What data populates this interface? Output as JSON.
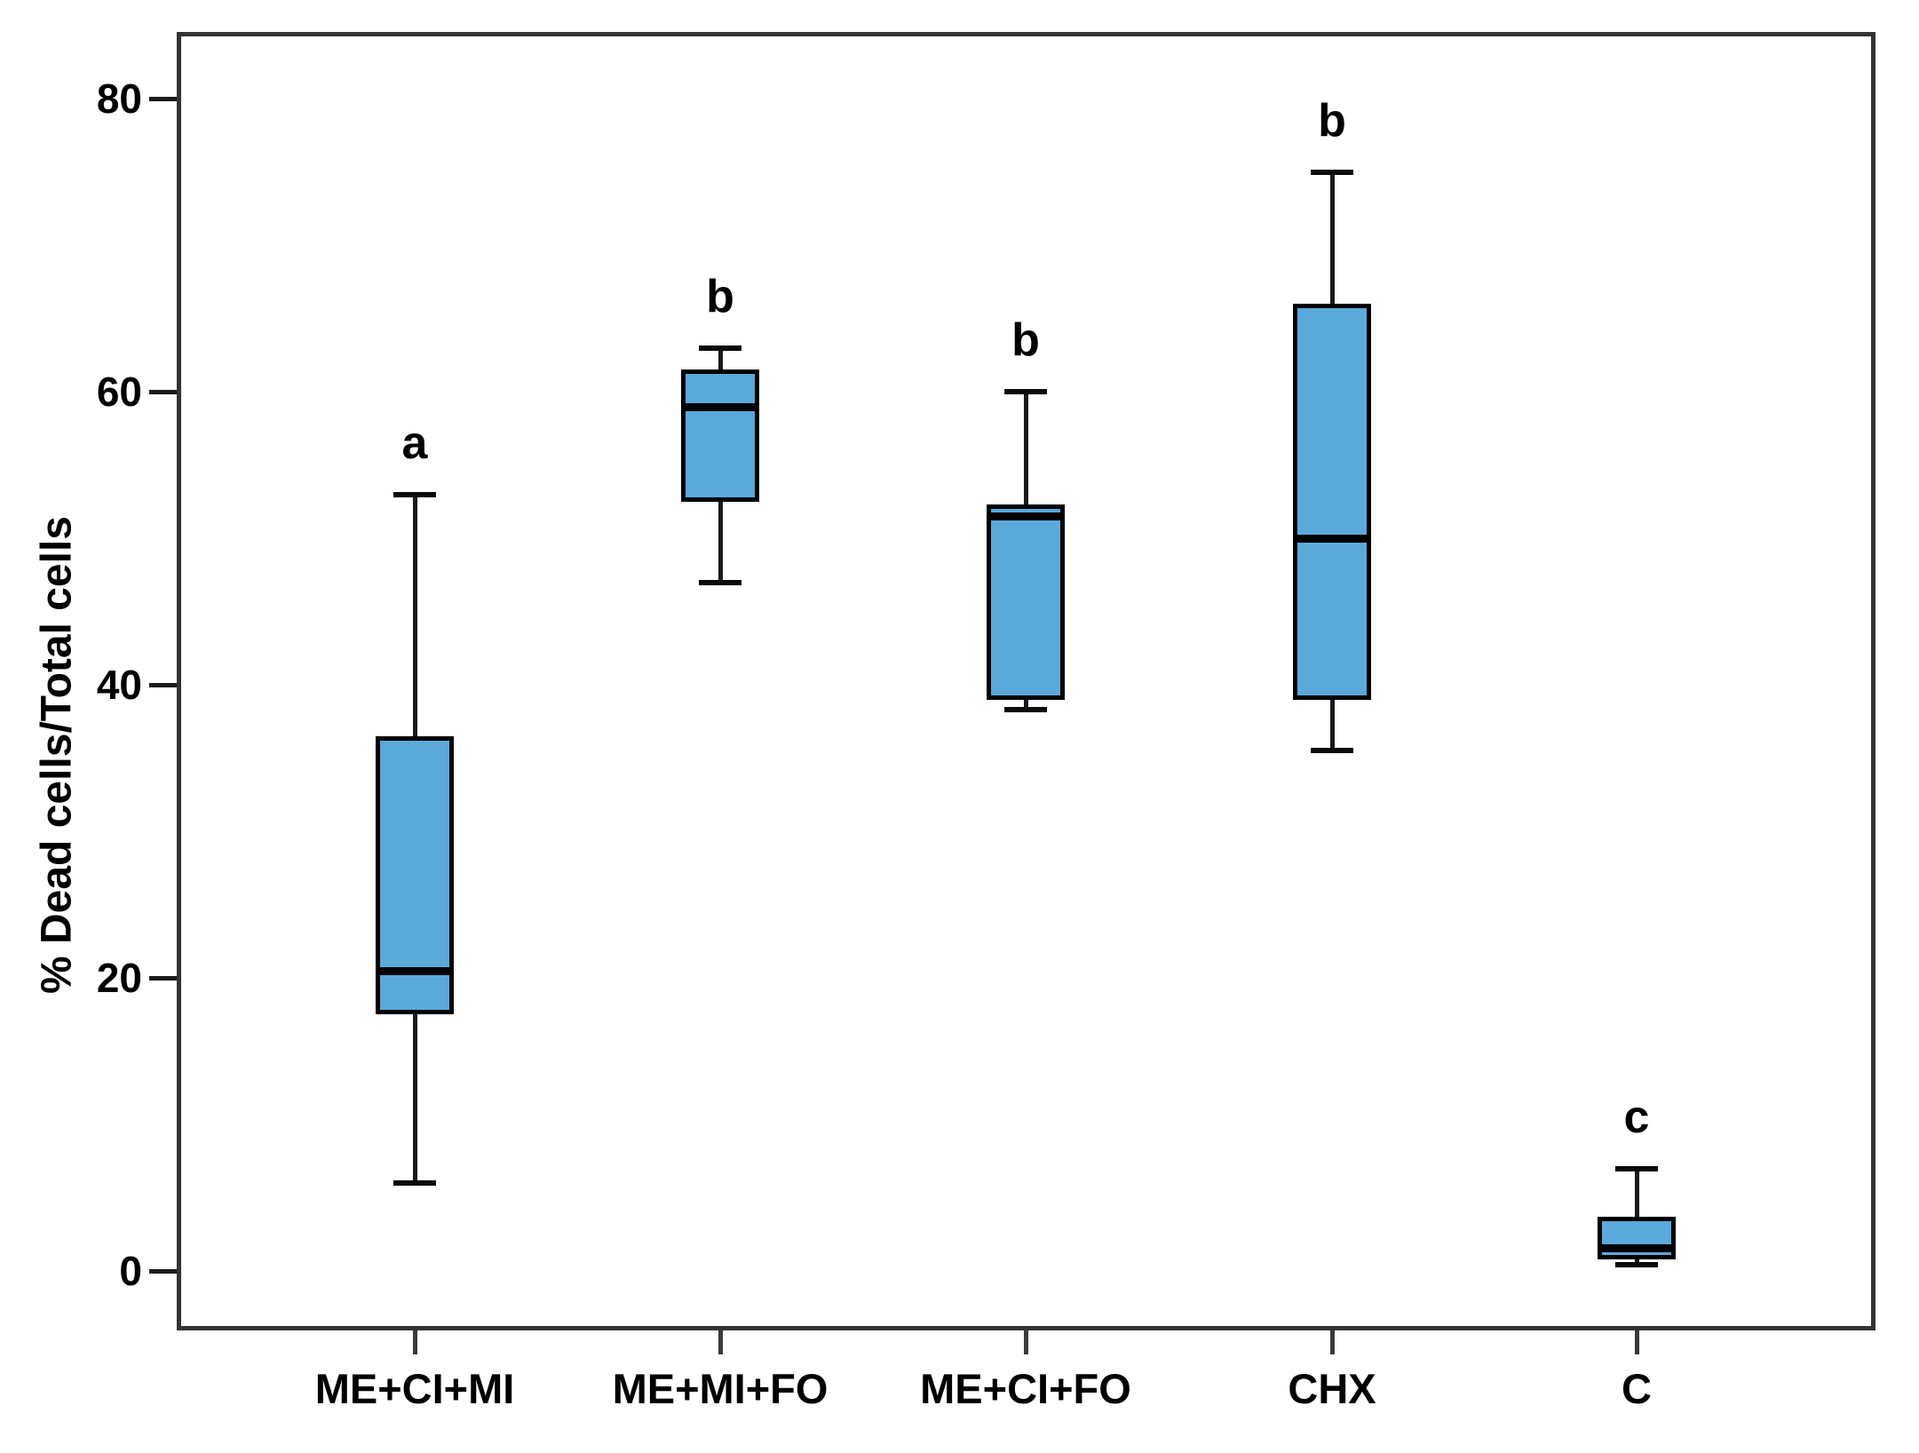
{
  "chart_data": {
    "type": "box",
    "title": "",
    "xlabel": "",
    "ylabel": "% Dead cells/Total cells",
    "yticks": [
      0,
      20,
      40,
      60,
      80
    ],
    "ylim": [
      -4.1,
      84.6
    ],
    "grid": false,
    "legend": false,
    "categories": [
      "ME+CI+MI",
      "ME+MI+FO",
      "ME+CI+FO",
      "CHX",
      "C"
    ],
    "boxes": [
      {
        "category": "ME+CI+MI",
        "letter": "a",
        "whisker_low": 6,
        "q1": 17.5,
        "median": 20.5,
        "q3": 36.5,
        "whisker_high": 53
      },
      {
        "category": "ME+MI+FO",
        "letter": "b",
        "whisker_low": 47,
        "q1": 52.5,
        "median": 59,
        "q3": 61.5,
        "whisker_high": 63
      },
      {
        "category": "ME+CI+FO",
        "letter": "b",
        "whisker_low": 38.3,
        "q1": 39,
        "median": 51.5,
        "q3": 52.3,
        "whisker_high": 60
      },
      {
        "category": "CHX",
        "letter": "b",
        "whisker_low": 35.5,
        "q1": 39,
        "median": 50,
        "q3": 66,
        "whisker_high": 75
      },
      {
        "category": "C",
        "letter": "c",
        "whisker_low": 0.4,
        "q1": 0.8,
        "median": 1.6,
        "q3": 3.7,
        "whisker_high": 7
      }
    ],
    "colors": {
      "box_fill": "#5BA9DB",
      "box_border": "#000000",
      "median": "#000000",
      "whisker": "#1a1a1a",
      "frame": "#333333",
      "text": "#000000"
    }
  }
}
